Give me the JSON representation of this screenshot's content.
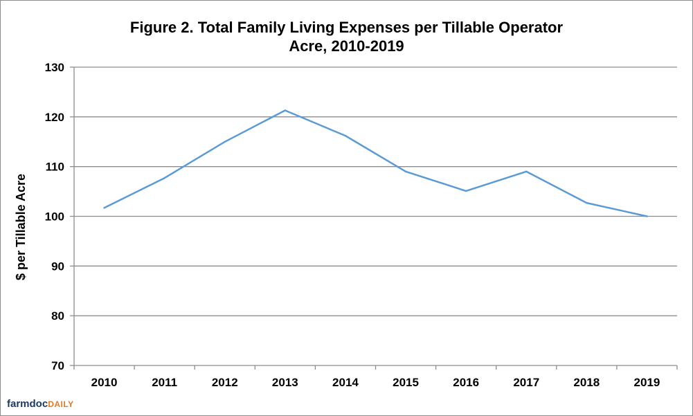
{
  "chart_data": {
    "type": "line",
    "title_line1": "Figure 2. Total Family Living Expenses per Tillable Operator",
    "title_line2": "Acre, 2010-2019",
    "xlabel": "",
    "ylabel": "$ per Tillable Acre",
    "ylim": [
      70,
      130
    ],
    "yticks": [
      70,
      80,
      90,
      100,
      110,
      120,
      130
    ],
    "categories": [
      "2010",
      "2011",
      "2012",
      "2013",
      "2014",
      "2015",
      "2016",
      "2017",
      "2018",
      "2019"
    ],
    "series": [
      {
        "values": [
          101.7,
          107.7,
          115.0,
          121.3,
          116.2,
          109.0,
          105.1,
          109.0,
          102.7,
          100.0
        ],
        "color": "#5b9bd5"
      }
    ],
    "grid": true,
    "gridline_color": "#8c8c8c",
    "legend": "none"
  },
  "logo": {
    "part1": "farmdoc",
    "part2": "DAILY"
  }
}
